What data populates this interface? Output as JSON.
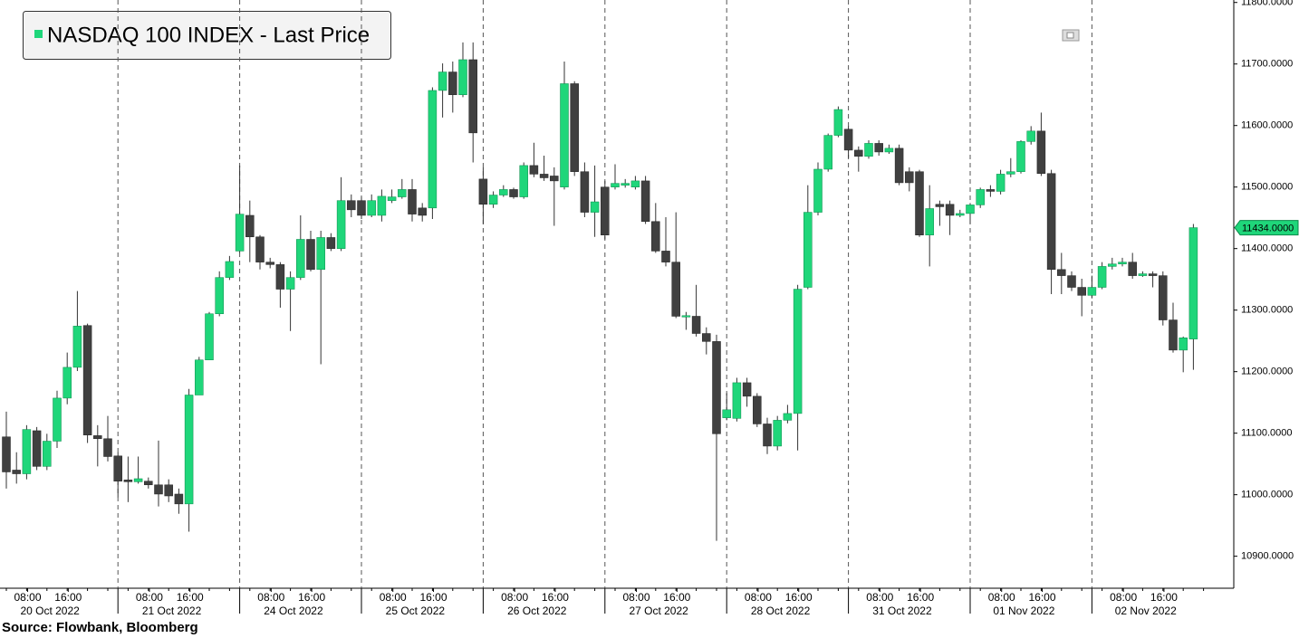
{
  "chart_data": {
    "type": "candlestick",
    "series_name": "NASDAQ 100 INDEX - Last Price",
    "up_color": "#1fd67a",
    "down_color": "#404040",
    "days": [
      "20 Oct 2022",
      "21 Oct 2022",
      "24 Oct 2022",
      "25 Oct 2022",
      "26 Oct 2022",
      "27 Oct 2022",
      "28 Oct 2022",
      "31 Oct 2022",
      "01 Nov 2022",
      "02 Nov 2022"
    ],
    "time_ticks": [
      "08:00",
      "16:00"
    ],
    "open": [
      11094,
      11040,
      11034,
      11104,
      11046,
      11087,
      11157,
      11207,
      11275,
      11096,
      11091,
      11063,
      11024,
      11021,
      11022,
      11016,
      11016,
      11001,
      10985,
      11162,
      11219,
      11294,
      11353,
      11396,
      11454,
      11419,
      11378,
      11374,
      11334,
      11353,
      11415,
      11366,
      11418,
      11400,
      11478,
      11478,
      11454,
      11454,
      11478,
      11484,
      11496,
      11466,
      11466,
      11657,
      11687,
      11650,
      11707,
      11513,
      11472,
      11487,
      11496,
      11484,
      11535,
      11521,
      11518,
      11500,
      11668,
      11525,
      11459,
      11500,
      11500,
      11503,
      11500,
      11510,
      11444,
      11396,
      11378,
      11290,
      11290,
      11262,
      11249,
      11125,
      11124,
      11182,
      11160,
      11115,
      11079,
      11121,
      11132,
      11337,
      11459,
      11529,
      11584,
      11594,
      11560,
      11550,
      11571,
      11557,
      11563,
      11525,
      11525,
      11422,
      11472,
      11472,
      11454,
      11457,
      11471,
      11496,
      11493,
      11521,
      11525,
      11574,
      11591,
      11522,
      11366,
      11356,
      11337,
      11324,
      11337,
      11371,
      11375,
      11378,
      11356,
      11359,
      11356,
      11284,
      11235,
      11253
    ],
    "high": [
      11135,
      11069,
      11113,
      11110,
      11099,
      11169,
      11231,
      11331,
      11278,
      11113,
      11128,
      11069,
      11062,
      11062,
      11028,
      11088,
      11025,
      11010,
      11172,
      11224,
      11297,
      11363,
      11388,
      11535,
      11478,
      11422,
      11385,
      11378,
      11363,
      11454,
      11429,
      11429,
      11425,
      11516,
      11488,
      11484,
      11488,
      11496,
      11496,
      11513,
      11513,
      11474,
      11662,
      11701,
      11704,
      11735,
      11735,
      11532,
      11493,
      11503,
      11499,
      11540,
      11572,
      11551,
      11532,
      11704,
      11672,
      11540,
      11535,
      11510,
      11537,
      11513,
      11518,
      11518,
      11474,
      11451,
      11459,
      11297,
      11341,
      11272,
      11260,
      11165,
      11190,
      11190,
      11165,
      11125,
      11128,
      11146,
      11341,
      11503,
      11540,
      11587,
      11631,
      11599,
      11566,
      11576,
      11576,
      11569,
      11569,
      11532,
      11528,
      11503,
      11478,
      11478,
      11463,
      11474,
      11499,
      11503,
      11528,
      11547,
      11576,
      11599,
      11621,
      11528,
      11393,
      11363,
      11351,
      11356,
      11378,
      11385,
      11385,
      11393,
      11363,
      11363,
      11363,
      11312,
      11257,
      11440
    ],
    "low": [
      11010,
      11018,
      11025,
      11040,
      11040,
      11076,
      11147,
      11201,
      11084,
      11046,
      11054,
      10996,
      10988,
      11018,
      11010,
      10981,
      10988,
      10969,
      10940,
      11162,
      11219,
      11290,
      11349,
      11393,
      11378,
      11366,
      11368,
      11304,
      11266,
      11349,
      11363,
      11212,
      11396,
      11396,
      11451,
      11448,
      11451,
      11444,
      11474,
      11481,
      11444,
      11444,
      11448,
      11613,
      11621,
      11646,
      11540,
      11440,
      11466,
      11484,
      11481,
      11481,
      11516,
      11510,
      11437,
      11496,
      11518,
      11451,
      11419,
      11415,
      11496,
      11499,
      11496,
      11440,
      11393,
      11371,
      11287,
      11268,
      11257,
      11228,
      10925,
      11121,
      11119,
      11143,
      11110,
      11066,
      11072,
      11116,
      11072,
      11334,
      11454,
      11525,
      11581,
      11547,
      11525,
      11546,
      11551,
      11554,
      11503,
      11493,
      11419,
      11371,
      11437,
      11422,
      11451,
      11440,
      11466,
      11484,
      11488,
      11516,
      11522,
      11569,
      11518,
      11326,
      11326,
      11331,
      11290,
      11319,
      11334,
      11366,
      11371,
      11351,
      11354,
      11337,
      11275,
      11231,
      11199,
      11203
    ],
    "close": [
      11037,
      11034,
      11106,
      11046,
      11087,
      11157,
      11207,
      11274,
      11097,
      11091,
      11062,
      11022,
      11021,
      11026,
      11016,
      11001,
      10998,
      10985,
      11162,
      11219,
      11294,
      11353,
      11379,
      11456,
      11419,
      11378,
      11374,
      11334,
      11353,
      11415,
      11366,
      11418,
      11400,
      11478,
      11463,
      11454,
      11478,
      11485,
      11484,
      11496,
      11456,
      11454,
      11657,
      11687,
      11650,
      11707,
      11588,
      11472,
      11487,
      11496,
      11484,
      11535,
      11521,
      11515,
      11510,
      11668,
      11525,
      11459,
      11476,
      11422,
      11506,
      11506,
      11510,
      11444,
      11396,
      11378,
      11290,
      11291,
      11262,
      11249,
      11099,
      11138,
      11182,
      11160,
      11115,
      11079,
      11121,
      11132,
      11334,
      11459,
      11529,
      11584,
      11626,
      11560,
      11550,
      11571,
      11557,
      11563,
      11507,
      11507,
      11422,
      11465,
      11468,
      11454,
      11457,
      11471,
      11496,
      11493,
      11521,
      11525,
      11574,
      11591,
      11522,
      11366,
      11356,
      11337,
      11324,
      11337,
      11371,
      11375,
      11378,
      11356,
      11359,
      11356,
      11284,
      11235,
      11255,
      11434
    ],
    "ylim": [
      10848,
      11804
    ],
    "yticks": [
      {
        "value": 10900,
        "label": "10900.0000"
      },
      {
        "value": 11000,
        "label": "11000.0000"
      },
      {
        "value": 11100,
        "label": "11100.0000"
      },
      {
        "value": 11200,
        "label": "11200.0000"
      },
      {
        "value": 11300,
        "label": "11300.0000"
      },
      {
        "value": 11400,
        "label": "11400.0000"
      },
      {
        "value": 11500,
        "label": "11500.0000"
      },
      {
        "value": 11600,
        "label": "11600.0000"
      },
      {
        "value": 11700,
        "label": "11700.0000"
      },
      {
        "value": 11800,
        "label": "11800.0000"
      }
    ],
    "last_price": {
      "value": 11434,
      "label": "11434.0000"
    },
    "source": "Source: Flowbank, Bloomberg"
  }
}
